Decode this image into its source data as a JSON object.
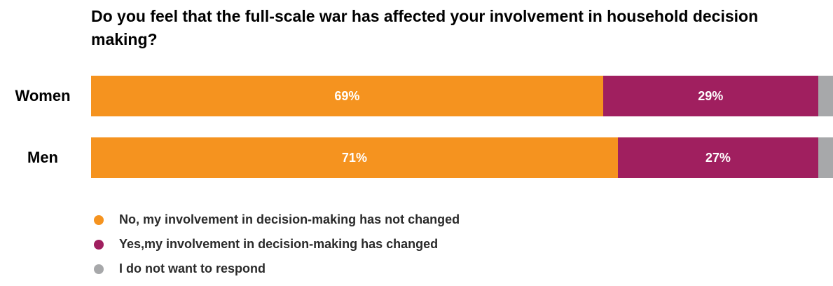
{
  "chart_data": {
    "type": "bar",
    "orientation": "horizontal",
    "stacked": true,
    "title": "Do you feel that the full-scale war has affected your involvement in household decision making?",
    "categories": [
      "Women",
      "Men"
    ],
    "series": [
      {
        "name": "No, my involvement in decision-making has not changed",
        "color": "#f5931f",
        "values": [
          69,
          71
        ],
        "labels": [
          "69%",
          "71%"
        ]
      },
      {
        "name": "Yes,my involvement in decision-making has changed",
        "color": "#a01f5f",
        "values": [
          29,
          27
        ],
        "labels": [
          "29%",
          "27%"
        ]
      },
      {
        "name": "I do not want to respond",
        "color": "#a7a8aa",
        "values": [
          2,
          2
        ],
        "labels": [
          "",
          ""
        ]
      }
    ],
    "xlim": [
      0,
      100
    ],
    "grid": false,
    "legend_position": "bottom-left"
  }
}
